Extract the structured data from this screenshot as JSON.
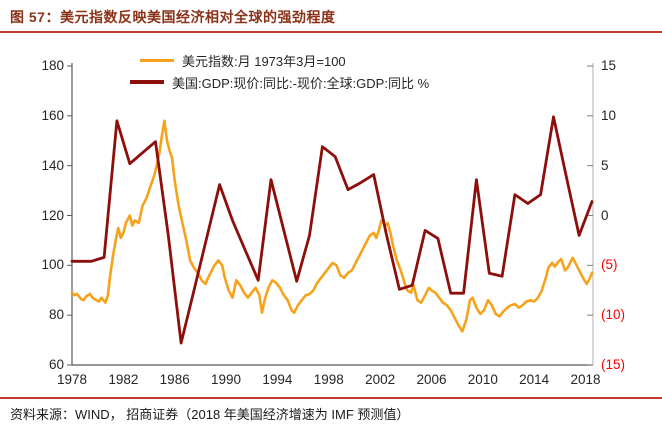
{
  "header": {
    "title": "图 57：美元指数反映美国经济相对全球的强劲程度",
    "title_color": "#8B3318",
    "rule_color": "#C23B2E"
  },
  "footer": {
    "source": "资料来源：WIND， 招商证券（2018 年美国经济增速为 IMF 预测值）",
    "rule_color": "#C23B2E"
  },
  "chart_data": {
    "type": "line",
    "title": "美元指数反映美国经济相对全球的强劲程度",
    "grid": false,
    "legend_position": "top-center-inside",
    "x_axis": {
      "ticks": [
        1978,
        1982,
        1986,
        1990,
        1994,
        1998,
        2002,
        2006,
        2010,
        2014,
        2018
      ],
      "range": [
        1978,
        2018.58
      ]
    },
    "y_axis_left": {
      "ticks": [
        180,
        160,
        140,
        120,
        100,
        80,
        60
      ],
      "range": [
        60,
        180
      ],
      "label_color": "#262626"
    },
    "y_axis_right": {
      "tick_labels": [
        "15",
        "10",
        "5",
        "0",
        "(5)",
        "(10)",
        "(15)"
      ],
      "tick_values": [
        15,
        10,
        5,
        0,
        -5,
        -10,
        -15
      ],
      "range": [
        -15,
        15
      ],
      "positive_color": "#262626",
      "negative_color": "#FF0000",
      "negative_format": "parentheses",
      "unit": "%"
    },
    "series": [
      {
        "name": "美元指数:月 1973年3月=100",
        "axis": "left",
        "frequency": "monthly",
        "color": "#F7A21B",
        "line_width": 2.6,
        "points": [
          [
            1978.0,
            89
          ],
          [
            1978.2,
            88
          ],
          [
            1978.4,
            88.5
          ],
          [
            1978.7,
            86.5
          ],
          [
            1978.9,
            86
          ],
          [
            1979.1,
            87.5
          ],
          [
            1979.4,
            88.5
          ],
          [
            1979.6,
            87
          ],
          [
            1979.9,
            86
          ],
          [
            1980.1,
            85.5
          ],
          [
            1980.3,
            87
          ],
          [
            1980.6,
            85
          ],
          [
            1980.8,
            88
          ],
          [
            1981.0,
            97
          ],
          [
            1981.2,
            104
          ],
          [
            1981.4,
            110
          ],
          [
            1981.6,
            115
          ],
          [
            1981.8,
            111
          ],
          [
            1982.0,
            113
          ],
          [
            1982.2,
            117
          ],
          [
            1982.5,
            120
          ],
          [
            1982.7,
            116
          ],
          [
            1982.9,
            118
          ],
          [
            1983.2,
            117
          ],
          [
            1983.5,
            124
          ],
          [
            1983.8,
            127
          ],
          [
            1984.0,
            130
          ],
          [
            1984.2,
            133
          ],
          [
            1984.4,
            136
          ],
          [
            1984.6,
            140
          ],
          [
            1984.8,
            145
          ],
          [
            1985.0,
            152
          ],
          [
            1985.2,
            158
          ],
          [
            1985.4,
            150
          ],
          [
            1985.6,
            146
          ],
          [
            1985.8,
            143
          ],
          [
            1986.0,
            134
          ],
          [
            1986.3,
            124
          ],
          [
            1986.6,
            117
          ],
          [
            1986.9,
            110
          ],
          [
            1987.2,
            102
          ],
          [
            1987.5,
            99
          ],
          [
            1987.8,
            97
          ],
          [
            1988.1,
            94
          ],
          [
            1988.4,
            92.5
          ],
          [
            1988.6,
            95
          ],
          [
            1988.9,
            98
          ],
          [
            1989.1,
            100
          ],
          [
            1989.4,
            102
          ],
          [
            1989.7,
            100
          ],
          [
            1989.9,
            95
          ],
          [
            1990.2,
            90
          ],
          [
            1990.5,
            87
          ],
          [
            1990.8,
            94
          ],
          [
            1991.1,
            92
          ],
          [
            1991.4,
            89
          ],
          [
            1991.7,
            87
          ],
          [
            1992.0,
            89
          ],
          [
            1992.3,
            91
          ],
          [
            1992.6,
            88
          ],
          [
            1992.8,
            81
          ],
          [
            1993.0,
            86
          ],
          [
            1993.3,
            91
          ],
          [
            1993.6,
            94
          ],
          [
            1993.9,
            93
          ],
          [
            1994.2,
            91
          ],
          [
            1994.5,
            88
          ],
          [
            1994.8,
            86
          ],
          [
            1995.1,
            82
          ],
          [
            1995.3,
            81
          ],
          [
            1995.6,
            84
          ],
          [
            1995.9,
            86
          ],
          [
            1996.2,
            88
          ],
          [
            1996.5,
            88.5
          ],
          [
            1996.8,
            90
          ],
          [
            1997.1,
            93
          ],
          [
            1997.4,
            95
          ],
          [
            1997.7,
            97
          ],
          [
            1998.0,
            99
          ],
          [
            1998.3,
            101
          ],
          [
            1998.6,
            100
          ],
          [
            1998.9,
            96
          ],
          [
            1999.2,
            95
          ],
          [
            1999.5,
            97
          ],
          [
            1999.8,
            98
          ],
          [
            2000.1,
            101
          ],
          [
            2000.4,
            104
          ],
          [
            2000.7,
            107
          ],
          [
            2001.0,
            110
          ],
          [
            2001.2,
            112
          ],
          [
            2001.5,
            113
          ],
          [
            2001.7,
            111
          ],
          [
            2001.9,
            114
          ],
          [
            2002.1,
            118
          ],
          [
            2002.4,
            116
          ],
          [
            2002.6,
            117
          ],
          [
            2002.8,
            113
          ],
          [
            2003.0,
            108
          ],
          [
            2003.3,
            102
          ],
          [
            2003.6,
            98
          ],
          [
            2003.9,
            93
          ],
          [
            2004.1,
            90
          ],
          [
            2004.4,
            89
          ],
          [
            2004.6,
            92
          ],
          [
            2004.9,
            86
          ],
          [
            2005.2,
            85
          ],
          [
            2005.5,
            88
          ],
          [
            2005.8,
            91
          ],
          [
            2006.0,
            90
          ],
          [
            2006.3,
            89
          ],
          [
            2006.6,
            87
          ],
          [
            2006.9,
            85
          ],
          [
            2007.2,
            84
          ],
          [
            2007.5,
            82
          ],
          [
            2007.8,
            79
          ],
          [
            2008.1,
            76
          ],
          [
            2008.4,
            73.5
          ],
          [
            2008.7,
            78
          ],
          [
            2009.0,
            86
          ],
          [
            2009.2,
            87
          ],
          [
            2009.5,
            83
          ],
          [
            2009.8,
            80.5
          ],
          [
            2010.1,
            82
          ],
          [
            2010.4,
            86
          ],
          [
            2010.7,
            84
          ],
          [
            2011.0,
            80.5
          ],
          [
            2011.3,
            79.5
          ],
          [
            2011.6,
            81.5
          ],
          [
            2011.9,
            83
          ],
          [
            2012.2,
            84
          ],
          [
            2012.5,
            84.5
          ],
          [
            2012.8,
            83
          ],
          [
            2013.1,
            84
          ],
          [
            2013.4,
            85.5
          ],
          [
            2013.7,
            86
          ],
          [
            2014.0,
            85.5
          ],
          [
            2014.3,
            87
          ],
          [
            2014.6,
            90
          ],
          [
            2014.9,
            95
          ],
          [
            2015.1,
            99
          ],
          [
            2015.4,
            101
          ],
          [
            2015.6,
            99.5
          ],
          [
            2015.9,
            101.5
          ],
          [
            2016.1,
            102.5
          ],
          [
            2016.4,
            98
          ],
          [
            2016.6,
            99
          ],
          [
            2016.8,
            101
          ],
          [
            2017.0,
            103
          ],
          [
            2017.3,
            100
          ],
          [
            2017.6,
            97
          ],
          [
            2017.9,
            94
          ],
          [
            2018.1,
            92.5
          ],
          [
            2018.3,
            94.5
          ],
          [
            2018.5,
            97
          ]
        ]
      },
      {
        "name": "美国:GDP:现价:同比:-现价:全球:GDP:同比 %",
        "axis": "right",
        "frequency": "annual",
        "color": "#8C0F0B",
        "line_width": 2.8,
        "points": [
          [
            1978,
            -4.6
          ],
          [
            1979,
            -4.6
          ],
          [
            1980,
            -4.2
          ],
          [
            1981,
            9.5
          ],
          [
            1982,
            5.2
          ],
          [
            1983,
            6.3
          ],
          [
            1984,
            7.4
          ],
          [
            1985,
            -2.0
          ],
          [
            1986,
            -12.8
          ],
          [
            1987,
            -7.5
          ],
          [
            1988,
            -2.2
          ],
          [
            1989,
            3.1
          ],
          [
            1990,
            -0.5
          ],
          [
            1991,
            -3.5
          ],
          [
            1992,
            -6.5
          ],
          [
            1993,
            3.6
          ],
          [
            1994,
            -1.5
          ],
          [
            1995,
            -6.6
          ],
          [
            1996,
            -2.0
          ],
          [
            1997,
            6.9
          ],
          [
            1998,
            5.9
          ],
          [
            1999,
            2.6
          ],
          [
            2000,
            3.3
          ],
          [
            2001,
            4.1
          ],
          [
            2002,
            -2.0
          ],
          [
            2003,
            -7.4
          ],
          [
            2004,
            -7.0
          ],
          [
            2005,
            -1.5
          ],
          [
            2006,
            -2.3
          ],
          [
            2007,
            -7.8
          ],
          [
            2008,
            -7.8
          ],
          [
            2009,
            3.6
          ],
          [
            2010,
            -5.8
          ],
          [
            2011,
            -6.1
          ],
          [
            2012,
            2.1
          ],
          [
            2013,
            1.2
          ],
          [
            2014,
            2.1
          ],
          [
            2015,
            9.9
          ],
          [
            2016,
            3.9
          ],
          [
            2017,
            -2.0
          ],
          [
            2018,
            1.4
          ]
        ]
      }
    ],
    "axis_colors": {
      "left_bottom_axis": "#595959",
      "right_axis_line": "#BFBFBF",
      "tick_marks": "#7F7F7F"
    }
  }
}
